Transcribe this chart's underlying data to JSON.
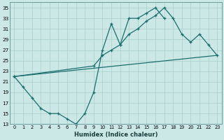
{
  "bg_color": "#cce8e6",
  "grid_color": "#aacfcc",
  "line_color": "#1a6e6e",
  "xlabel": "Humidex (Indice chaleur)",
  "xlim": [
    -0.5,
    23.5
  ],
  "ylim": [
    13,
    36
  ],
  "yticks": [
    13,
    15,
    17,
    19,
    21,
    23,
    25,
    27,
    29,
    31,
    33,
    35
  ],
  "xticks": [
    0,
    1,
    2,
    3,
    4,
    5,
    6,
    7,
    8,
    9,
    10,
    11,
    12,
    13,
    14,
    15,
    16,
    17,
    18,
    19,
    20,
    21,
    22,
    23
  ],
  "line1_x": [
    0,
    1,
    2,
    3,
    4,
    5,
    6,
    7,
    8,
    9,
    10,
    11,
    12,
    13,
    14,
    15,
    16,
    17
  ],
  "line1_y": [
    22,
    20,
    18,
    16,
    15,
    15,
    14,
    13,
    15,
    19,
    27,
    32,
    28,
    33,
    33,
    34,
    35,
    33
  ],
  "line2_x": [
    0,
    9,
    10,
    11,
    12,
    13,
    14,
    15,
    16,
    17,
    18,
    19,
    20,
    21,
    22,
    23
  ],
  "line2_y": [
    22,
    24,
    26,
    27,
    28,
    30,
    31,
    32.5,
    33.5,
    35,
    33,
    30,
    28.5,
    30,
    28,
    26
  ],
  "line3_x": [
    0,
    23
  ],
  "line3_y": [
    22,
    26
  ]
}
